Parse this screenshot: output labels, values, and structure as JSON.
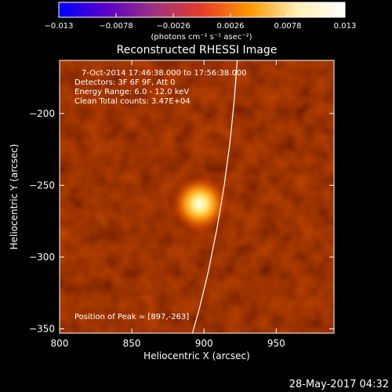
{
  "chart_data": {
    "type": "heatmap",
    "title": "Reconstructed RHESSI Image",
    "xlabel": "Heliocentric X (arcsec)",
    "ylabel": "Heliocentric Y (arcsec)",
    "xlim": [
      800,
      990
    ],
    "ylim": [
      -353,
      -163
    ],
    "x_ticks": [
      800,
      850,
      900,
      950
    ],
    "x_tick_labels": [
      "800",
      "850",
      "900",
      "950"
    ],
    "y_ticks": [
      -350,
      -300,
      -250,
      -200
    ],
    "y_tick_labels": [
      "−350",
      "−300",
      "−250",
      "−200"
    ],
    "colorbar": {
      "range": [
        -0.013,
        0.013
      ],
      "ticks": [
        -0.013,
        -0.0078,
        -0.0026,
        0.0026,
        0.0078,
        0.013
      ],
      "tick_labels": [
        "−0.013",
        "−0.0078",
        "−0.0026",
        "0.0026",
        "0.0078",
        "0.013"
      ],
      "unit_label": "(photons cm⁻² s⁻¹ asec⁻²)",
      "colors": [
        "#0000ff",
        "#5a00c8",
        "#a03280",
        "#e63c28",
        "#ff9600",
        "#fff0b4",
        "#ffffff"
      ]
    },
    "background_color": "#7a1500",
    "source": {
      "x": 897,
      "y": -263,
      "peak_color": "#ffffff"
    },
    "limb_curve": [
      [
        923,
        -163
      ],
      [
        921,
        -190
      ],
      [
        918,
        -220
      ],
      [
        914,
        -250
      ],
      [
        909,
        -280
      ],
      [
        903,
        -310
      ],
      [
        897,
        -335
      ],
      [
        892,
        -353
      ]
    ],
    "annotations": [
      "7-Oct-2014 17:46:38.000 to 17:56:38.000",
      "Detectors: 3F 6F 9F, Att 0",
      "Energy Range: 6.0 - 12.0 keV",
      "Clean     Total counts: 3.47E+04"
    ],
    "peak_label": "Position of Peak = [897,-263]",
    "timestamp": "28-May-2017 04:32"
  }
}
